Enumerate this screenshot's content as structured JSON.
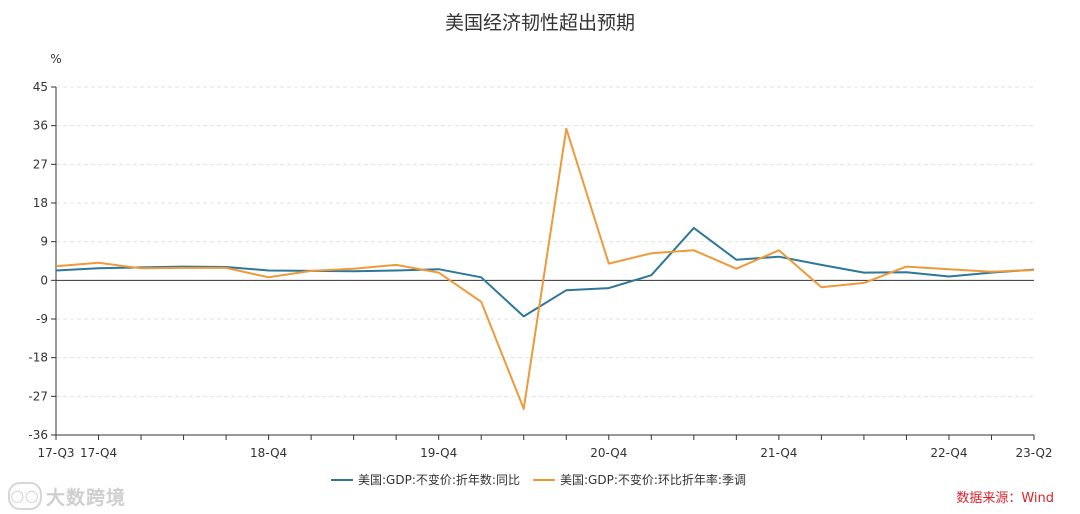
{
  "chart_data": {
    "type": "line",
    "title": "美国经济韧性超出预期",
    "unit_label": "%",
    "ylim": [
      -36,
      45
    ],
    "y_ticks": [
      45,
      36,
      27,
      18,
      9,
      0,
      -9,
      -18,
      -27,
      -36
    ],
    "grid": true,
    "legend_position": "bottom",
    "categories": [
      "17-Q3",
      "17-Q4",
      "18-Q1",
      "18-Q2",
      "18-Q3",
      "18-Q4",
      "19-Q1",
      "19-Q2",
      "19-Q3",
      "19-Q4",
      "20-Q1",
      "20-Q2",
      "20-Q3",
      "20-Q4",
      "21-Q1",
      "21-Q2",
      "21-Q3",
      "21-Q4",
      "22-Q1",
      "22-Q2",
      "22-Q3",
      "22-Q4",
      "23-Q1",
      "23-Q2"
    ],
    "x_tick_labels": [
      "17-Q3",
      "17-Q4",
      "18-Q4",
      "19-Q4",
      "20-Q4",
      "21-Q4",
      "22-Q4",
      "23-Q2"
    ],
    "series": [
      {
        "name": "美国:GDP:不变价:折年数:同比",
        "color": "#2e7799",
        "values": [
          2.3,
          2.8,
          3.0,
          3.2,
          3.1,
          2.3,
          2.2,
          2.1,
          2.3,
          2.6,
          0.7,
          -8.4,
          -2.3,
          -1.8,
          1.2,
          12.2,
          4.8,
          5.5,
          3.6,
          1.8,
          1.9,
          0.9,
          1.8,
          2.5
        ]
      },
      {
        "name": "美国:GDP:不变价:环比折年率:季调",
        "color": "#ee9a3a",
        "values": [
          3.3,
          4.1,
          2.8,
          2.9,
          2.9,
          0.7,
          2.2,
          2.7,
          3.6,
          1.8,
          -5.0,
          -29.9,
          35.3,
          3.9,
          6.3,
          7.0,
          2.7,
          7.0,
          -1.6,
          -0.6,
          3.2,
          2.6,
          2.0,
          2.4
        ]
      }
    ],
    "source_text": "数据来源：Wind",
    "watermark_text": "大数跨境"
  }
}
